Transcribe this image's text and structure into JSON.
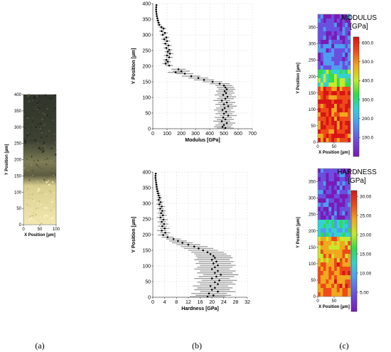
{
  "panel_labels": [
    "(a)",
    "(b)",
    "(c)"
  ],
  "colors": {
    "micro_dark": "#2f3325",
    "micro_mid": "#7d7a53",
    "micro_light": "#eee3a8",
    "marker": "#000000",
    "errbar": "#9a9a9a",
    "grid": "#d6d6d6"
  },
  "chart_data": [
    {
      "id": "a",
      "type": "image",
      "xlabel": "X Position [µm]",
      "ylabel": "Y Position [µm]",
      "xticks": [
        "0",
        "50",
        "100"
      ],
      "yticks": [
        "0",
        "50",
        "100",
        "150",
        "200",
        "250",
        "300",
        "350",
        "400"
      ],
      "xlim": [
        0,
        100
      ],
      "ylim": [
        0,
        400
      ]
    },
    {
      "id": "b-modulus",
      "type": "scatter",
      "xlabel": "Modulus [GPa]",
      "ylabel": "Y Position [µm]",
      "xlim": [
        0,
        700
      ],
      "ylim": [
        0,
        400
      ],
      "xticks": [
        "0",
        "100",
        "200",
        "300",
        "400",
        "500",
        "600",
        "700"
      ],
      "yticks": [
        "0",
        "50",
        "100",
        "150",
        "200",
        "250",
        "300",
        "350",
        "400"
      ],
      "grid": true,
      "points": [
        [
          25,
          395,
          4
        ],
        [
          24,
          388,
          4
        ],
        [
          23,
          381,
          4
        ],
        [
          24,
          374,
          4
        ],
        [
          26,
          367,
          5
        ],
        [
          28,
          360,
          6
        ],
        [
          32,
          353,
          8
        ],
        [
          35,
          346,
          10
        ],
        [
          40,
          339,
          12
        ],
        [
          45,
          332,
          15
        ],
        [
          60,
          325,
          18
        ],
        [
          75,
          320,
          20
        ],
        [
          62,
          312,
          18
        ],
        [
          85,
          306,
          20
        ],
        [
          70,
          300,
          18
        ],
        [
          95,
          292,
          20
        ],
        [
          80,
          286,
          20
        ],
        [
          100,
          280,
          22
        ],
        [
          88,
          272,
          20
        ],
        [
          110,
          266,
          22
        ],
        [
          95,
          258,
          20
        ],
        [
          115,
          252,
          22
        ],
        [
          105,
          246,
          22
        ],
        [
          120,
          240,
          24
        ],
        [
          100,
          234,
          22
        ],
        [
          115,
          228,
          24
        ],
        [
          95,
          220,
          22
        ],
        [
          105,
          214,
          24
        ],
        [
          90,
          208,
          24
        ],
        [
          115,
          202,
          26
        ],
        [
          180,
          190,
          50
        ],
        [
          200,
          184,
          60
        ],
        [
          160,
          180,
          55
        ],
        [
          225,
          176,
          60
        ],
        [
          270,
          168,
          65
        ],
        [
          320,
          162,
          70
        ],
        [
          360,
          156,
          70
        ],
        [
          420,
          150,
          70
        ],
        [
          470,
          144,
          70
        ],
        [
          500,
          138,
          60
        ],
        [
          510,
          132,
          60
        ],
        [
          520,
          126,
          60
        ],
        [
          505,
          120,
          60
        ],
        [
          515,
          114,
          60
        ],
        [
          495,
          108,
          60
        ],
        [
          525,
          102,
          60
        ],
        [
          510,
          96,
          60
        ],
        [
          485,
          90,
          60
        ],
        [
          520,
          84,
          60
        ],
        [
          500,
          78,
          60
        ],
        [
          530,
          72,
          60
        ],
        [
          505,
          66,
          60
        ],
        [
          490,
          60,
          60
        ],
        [
          515,
          54,
          60
        ],
        [
          500,
          48,
          60
        ],
        [
          530,
          42,
          60
        ],
        [
          495,
          36,
          60
        ],
        [
          510,
          30,
          60
        ],
        [
          485,
          24,
          60
        ],
        [
          520,
          18,
          60
        ],
        [
          500,
          12,
          60
        ],
        [
          490,
          6,
          60
        ],
        [
          510,
          2,
          60
        ]
      ]
    },
    {
      "id": "b-hardness",
      "type": "scatter",
      "xlabel": "Hardness [GPa]",
      "ylabel": "Y Position [µm]",
      "xlim": [
        0,
        32
      ],
      "ylim": [
        0,
        400
      ],
      "xticks": [
        "0",
        "4",
        "8",
        "12",
        "16",
        "20",
        "24",
        "28",
        "32"
      ],
      "yticks": [
        "0",
        "50",
        "100",
        "150",
        "200",
        "250",
        "300",
        "350",
        "400"
      ],
      "grid": true,
      "points": [
        [
          1.0,
          395,
          0.2
        ],
        [
          0.9,
          388,
          0.2
        ],
        [
          0.9,
          381,
          0.2
        ],
        [
          1.0,
          374,
          0.3
        ],
        [
          1.1,
          367,
          0.3
        ],
        [
          1.2,
          360,
          0.4
        ],
        [
          1.3,
          353,
          0.5
        ],
        [
          1.4,
          346,
          0.5
        ],
        [
          1.6,
          339,
          0.6
        ],
        [
          1.8,
          332,
          0.7
        ],
        [
          2.0,
          325,
          0.8
        ],
        [
          2.3,
          318,
          0.9
        ],
        [
          2.0,
          311,
          0.9
        ],
        [
          2.6,
          304,
          1.0
        ],
        [
          2.2,
          297,
          1.0
        ],
        [
          3.0,
          290,
          1.1
        ],
        [
          2.5,
          283,
          1.1
        ],
        [
          3.2,
          276,
          1.2
        ],
        [
          2.8,
          269,
          1.2
        ],
        [
          3.4,
          262,
          1.3
        ],
        [
          2.6,
          255,
          1.3
        ],
        [
          3.6,
          248,
          1.4
        ],
        [
          3.0,
          241,
          1.4
        ],
        [
          3.8,
          234,
          1.5
        ],
        [
          3.2,
          227,
          1.5
        ],
        [
          4.0,
          220,
          1.6
        ],
        [
          3.0,
          213,
          1.6
        ],
        [
          4.2,
          206,
          1.7
        ],
        [
          3.5,
          199,
          1.8
        ],
        [
          5.0,
          192,
          2.0
        ],
        [
          7.0,
          186,
          2.5
        ],
        [
          8.5,
          180,
          3.0
        ],
        [
          10.0,
          174,
          3.5
        ],
        [
          12.0,
          168,
          4.0
        ],
        [
          14.0,
          162,
          4.5
        ],
        [
          15.5,
          156,
          5.0
        ],
        [
          17.0,
          150,
          5.0
        ],
        [
          18.5,
          144,
          5.5
        ],
        [
          19.5,
          138,
          5.5
        ],
        [
          20.5,
          132,
          6.0
        ],
        [
          21.0,
          126,
          6.0
        ],
        [
          20.0,
          120,
          6.0
        ],
        [
          21.5,
          114,
          6.0
        ],
        [
          20.5,
          108,
          6.0
        ],
        [
          22.0,
          102,
          6.0
        ],
        [
          21.0,
          96,
          6.0
        ],
        [
          20.0,
          90,
          6.0
        ],
        [
          22.0,
          84,
          6.0
        ],
        [
          21.0,
          78,
          6.0
        ],
        [
          23.0,
          72,
          6.0
        ],
        [
          21.5,
          66,
          6.0
        ],
        [
          20.0,
          60,
          6.0
        ],
        [
          22.5,
          54,
          6.0
        ],
        [
          21.0,
          48,
          6.0
        ],
        [
          22.0,
          42,
          6.0
        ],
        [
          19.5,
          36,
          6.0
        ],
        [
          21.0,
          30,
          6.0
        ],
        [
          20.0,
          24,
          6.0
        ],
        [
          22.0,
          18,
          6.0
        ],
        [
          19.0,
          12,
          6.0
        ],
        [
          20.5,
          6,
          6.0
        ],
        [
          18.5,
          2,
          6.0
        ]
      ]
    },
    {
      "id": "c-modulus",
      "type": "heatmap",
      "title": "MODULUS [GPa]",
      "xlabel": "X Position [µm]",
      "ylabel": "Y Position [µm]",
      "xticks": [
        "0",
        "50"
      ],
      "yticks": [
        "0",
        "50",
        "100",
        "150",
        "200",
        "250",
        "300",
        "350"
      ],
      "xlim": [
        0,
        100
      ],
      "ylim": [
        0,
        390
      ],
      "colorbar": {
        "min": 0,
        "max": 630,
        "ticks": [
          "100.0",
          "200.0",
          "300.0",
          "400.0",
          "500.0",
          "600.0"
        ]
      }
    },
    {
      "id": "c-hardness",
      "type": "heatmap",
      "title": "HARDNESS [GPa]",
      "xlabel": "X Position [µm]",
      "ylabel": "Y Position [µm]",
      "xticks": [
        "0",
        "50"
      ],
      "yticks": [
        "0",
        "50",
        "100",
        "150",
        "200",
        "250",
        "300",
        "350"
      ],
      "xlim": [
        0,
        100
      ],
      "ylim": [
        0,
        390
      ],
      "colorbar": {
        "min": 0,
        "max": 31.5,
        "ticks": [
          "5.00",
          "10.00",
          "15.00",
          "20.00",
          "25.00",
          "30.00"
        ]
      }
    }
  ]
}
